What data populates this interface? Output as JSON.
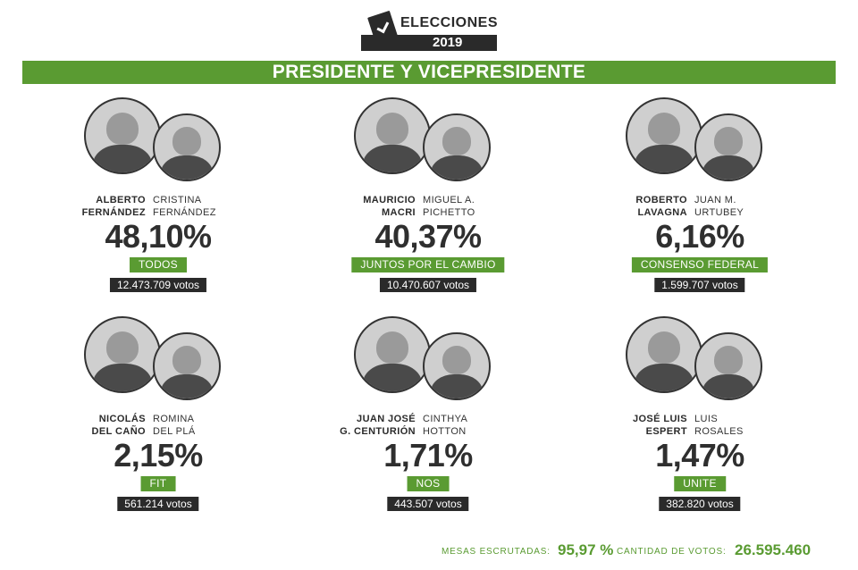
{
  "header": {
    "logo_line1": "ELECCIONES",
    "logo_line2": "2019",
    "title": "PRESIDENTE Y VICEPRESIDENTE"
  },
  "candidates": [
    {
      "name_a": "ALBERTO\nFERNÁNDEZ",
      "name_b": "CRISTINA\nFERNÁNDEZ",
      "pct": "48,10%",
      "party": "TODOS",
      "votes": "12.473.709 votos"
    },
    {
      "name_a": "MAURICIO\nMACRI",
      "name_b": "MIGUEL A.\nPICHETTO",
      "pct": "40,37%",
      "party": "JUNTOS POR EL CAMBIO",
      "votes": "10.470.607 votos"
    },
    {
      "name_a": "ROBERTO\nLAVAGNA",
      "name_b": "JUAN M.\nURTUBEY",
      "pct": "6,16%",
      "party": "CONSENSO FEDERAL",
      "votes": "1.599.707 votos"
    },
    {
      "name_a": "NICOLÁS\nDEL CAÑO",
      "name_b": "ROMINA\nDEL PLÁ",
      "pct": "2,15%",
      "party": "FIT",
      "votes": "561.214 votos"
    },
    {
      "name_a": "JUAN JOSÉ\nG. CENTURIÓN",
      "name_b": "CINTHYA\nHOTTON",
      "pct": "1,71%",
      "party": "NOS",
      "votes": "443.507 votos"
    },
    {
      "name_a": "JOSÉ LUIS\nESPERT",
      "name_b": "LUIS\nROSALES",
      "pct": "1,47%",
      "party": "UNITE",
      "votes": "382.820 votos"
    }
  ],
  "footer": {
    "mesas_label": "MESAS ESCRUTADAS:",
    "mesas_value": "95,97 %",
    "votos_label": "CANTIDAD DE VOTOS:",
    "votos_value": "26.595.460"
  },
  "colors": {
    "accent": "#5a9b32",
    "dark": "#2a2a2a"
  }
}
